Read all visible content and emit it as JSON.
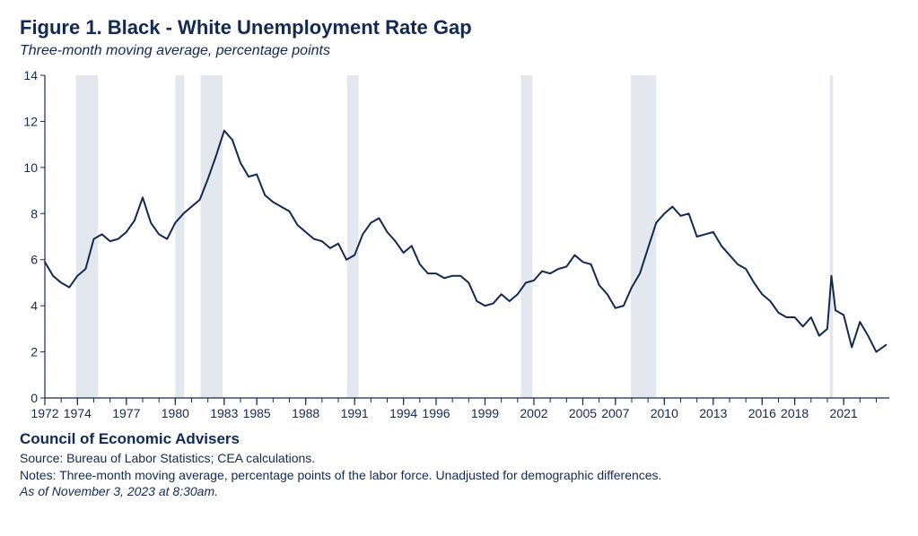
{
  "title": "Figure 1. Black - White Unemployment Rate Gap",
  "subtitle": "Three-month moving average, percentage points",
  "footer": {
    "org": "Council of Economic Advisers",
    "source": "Source: Bureau of Labor Statistics; CEA calculations.",
    "notes": "Notes: Three-month moving average, percentage points of the labor force. Unadjusted for demographic differences.",
    "asof": "As of November 3, 2023 at 8:30am."
  },
  "chart": {
    "type": "line",
    "xlim": [
      1972,
      2023.8
    ],
    "ylim": [
      0,
      14
    ],
    "ytick_step": 2,
    "xtick_start": 1972,
    "xtick_step_major": 2,
    "xtick_step_major2": 3,
    "xtick_labels": [
      1972,
      1974,
      1977,
      1980,
      1983,
      1985,
      1988,
      1991,
      1994,
      1996,
      1999,
      2002,
      2005,
      2007,
      2010,
      2013,
      2016,
      2018,
      2021
    ],
    "minor_tick_step": 1,
    "axis_color": "#122a53",
    "grid_color": "none",
    "background_color": "#ffffff",
    "line_color": "#122a53",
    "line_width": 2.0,
    "tick_font_size": 14,
    "title_color": "#122a53",
    "recession_color": "#e3e8ee",
    "recessions": [
      [
        1973.9,
        1975.25
      ],
      [
        1980.0,
        1980.55
      ],
      [
        1981.55,
        1982.9
      ],
      [
        1990.55,
        1991.25
      ],
      [
        2001.2,
        2001.9
      ],
      [
        2007.95,
        2009.5
      ],
      [
        2020.15,
        2020.35
      ]
    ],
    "series": {
      "x": [
        1972.0,
        1972.5,
        1973.0,
        1973.5,
        1974.0,
        1974.5,
        1975.0,
        1975.5,
        1976.0,
        1976.5,
        1977.0,
        1977.5,
        1978.0,
        1978.5,
        1979.0,
        1979.5,
        1980.0,
        1980.5,
        1981.0,
        1981.5,
        1982.0,
        1982.5,
        1983.0,
        1983.5,
        1984.0,
        1984.5,
        1985.0,
        1985.5,
        1986.0,
        1986.5,
        1987.0,
        1987.5,
        1988.0,
        1988.5,
        1989.0,
        1989.5,
        1990.0,
        1990.5,
        1991.0,
        1991.5,
        1992.0,
        1992.5,
        1993.0,
        1993.5,
        1994.0,
        1994.5,
        1995.0,
        1995.5,
        1996.0,
        1996.5,
        1997.0,
        1997.5,
        1998.0,
        1998.5,
        1999.0,
        1999.5,
        2000.0,
        2000.5,
        2001.0,
        2001.5,
        2002.0,
        2002.5,
        2003.0,
        2003.5,
        2004.0,
        2004.5,
        2005.0,
        2005.5,
        2006.0,
        2006.5,
        2007.0,
        2007.5,
        2008.0,
        2008.5,
        2009.0,
        2009.5,
        2010.0,
        2010.5,
        2011.0,
        2011.5,
        2012.0,
        2012.5,
        2013.0,
        2013.5,
        2014.0,
        2014.5,
        2015.0,
        2015.5,
        2016.0,
        2016.5,
        2017.0,
        2017.5,
        2018.0,
        2018.5,
        2019.0,
        2019.5,
        2020.0,
        2020.25,
        2020.5,
        2021.0,
        2021.5,
        2022.0,
        2022.5,
        2023.0,
        2023.6
      ],
      "y": [
        5.9,
        5.3,
        5.0,
        4.8,
        5.3,
        5.6,
        6.9,
        7.1,
        6.8,
        6.9,
        7.2,
        7.7,
        8.7,
        7.6,
        7.1,
        6.9,
        7.6,
        8.0,
        8.3,
        8.6,
        9.5,
        10.5,
        11.6,
        11.2,
        10.2,
        9.6,
        9.7,
        8.8,
        8.5,
        8.3,
        8.1,
        7.5,
        7.2,
        6.9,
        6.8,
        6.5,
        6.7,
        6.0,
        6.2,
        7.1,
        7.6,
        7.8,
        7.2,
        6.8,
        6.3,
        6.6,
        5.8,
        5.4,
        5.4,
        5.2,
        5.3,
        5.3,
        5.0,
        4.2,
        4.0,
        4.1,
        4.5,
        4.2,
        4.5,
        5.0,
        5.1,
        5.5,
        5.4,
        5.6,
        5.7,
        6.2,
        5.9,
        5.8,
        4.9,
        4.5,
        3.9,
        4.0,
        4.8,
        5.4,
        6.5,
        7.6,
        8.0,
        8.3,
        7.9,
        8.0,
        7.0,
        7.1,
        7.2,
        6.6,
        6.2,
        5.8,
        5.6,
        5.0,
        4.5,
        4.2,
        3.7,
        3.5,
        3.5,
        3.1,
        3.5,
        2.7,
        3.0,
        5.3,
        3.8,
        3.6,
        2.2,
        3.3,
        2.7,
        2.0,
        2.3
      ]
    }
  }
}
